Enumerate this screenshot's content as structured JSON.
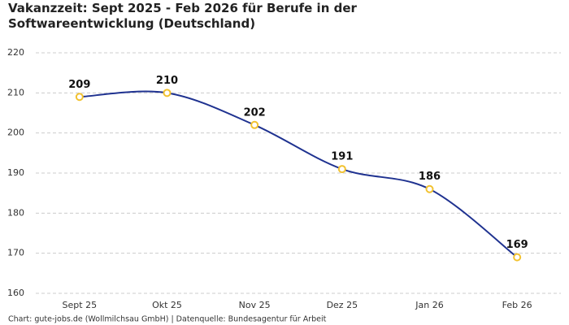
{
  "chart_data": {
    "type": "line",
    "title": "Vakanzzeit: Sept 2025 - Feb 2026 für Berufe in der Softwareentwicklung (Deutschland)",
    "source": "Chart: gute-jobs.de (Wollmilchsau GmbH) | Datenquelle: Bundesagentur für Arbeit",
    "categories": [
      "Sept 25",
      "Okt 25",
      "Nov 25",
      "Dez 25",
      "Jan 26",
      "Feb 26"
    ],
    "values": [
      209,
      210,
      202,
      191,
      186,
      169
    ],
    "color": "#1f3290",
    "marker_color": "#f2c230",
    "ylim": [
      160,
      220
    ],
    "yticks": [
      160,
      170,
      180,
      190,
      200,
      210,
      220
    ],
    "grid": true
  }
}
